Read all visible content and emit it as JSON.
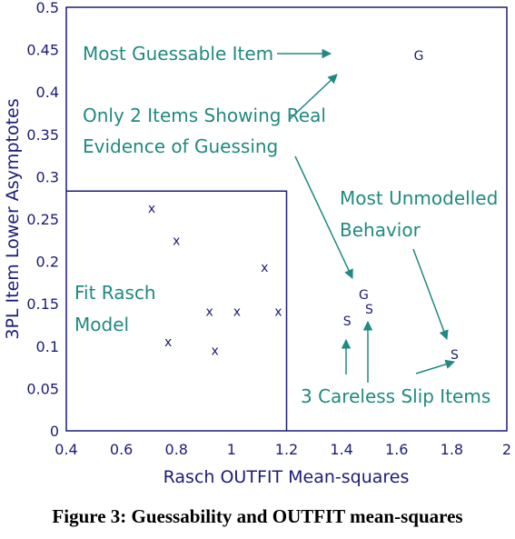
{
  "caption": "Figure 3: Guessability and OUTFIT mean-squares",
  "colors": {
    "axis": "#1c1c78",
    "annotation": "#1f8a80"
  },
  "chart_data": {
    "type": "scatter",
    "xlabel": "Rasch OUTFIT Mean-squares",
    "ylabel": "3PL Item Lower Asymptotes",
    "xlim": [
      0.4,
      2.0
    ],
    "ylim": [
      0,
      0.5
    ],
    "x_ticks": [
      "0.4",
      "0.6",
      "0.8",
      "1",
      "1.2",
      "1.4",
      "1.6",
      "1.8",
      "2"
    ],
    "y_ticks": [
      "0",
      "0.05",
      "0.1",
      "0.15",
      "0.2",
      "0.25",
      "0.3",
      "0.35",
      "0.4",
      "0.45",
      "0.5"
    ],
    "points": [
      {
        "x": 0.71,
        "y": 0.263,
        "label": "x"
      },
      {
        "x": 0.8,
        "y": 0.225,
        "label": "x"
      },
      {
        "x": 1.12,
        "y": 0.193,
        "label": "x"
      },
      {
        "x": 0.92,
        "y": 0.141,
        "label": "x"
      },
      {
        "x": 1.02,
        "y": 0.141,
        "label": "x"
      },
      {
        "x": 1.17,
        "y": 0.141,
        "label": "x"
      },
      {
        "x": 0.77,
        "y": 0.105,
        "label": "x"
      },
      {
        "x": 0.94,
        "y": 0.095,
        "label": "x"
      },
      {
        "x": 1.68,
        "y": 0.443,
        "label": "G"
      },
      {
        "x": 1.48,
        "y": 0.161,
        "label": "G"
      },
      {
        "x": 1.5,
        "y": 0.144,
        "label": "S"
      },
      {
        "x": 1.42,
        "y": 0.13,
        "label": "S"
      },
      {
        "x": 1.81,
        "y": 0.09,
        "label": "S"
      }
    ],
    "fit_region": {
      "x_max": 1.2,
      "y_max": 0.283
    },
    "annotations": {
      "most_guessable": "Most Guessable Item",
      "real_guessing_1": "Only 2 Items Showing Real",
      "real_guessing_2": "Evidence of Guessing",
      "unmodelled_1": "Most Unmodelled",
      "unmodelled_2": "Behavior",
      "fit_rasch_1": "Fit Rasch",
      "fit_rasch_2": "Model",
      "careless": "3 Careless Slip Items"
    }
  }
}
